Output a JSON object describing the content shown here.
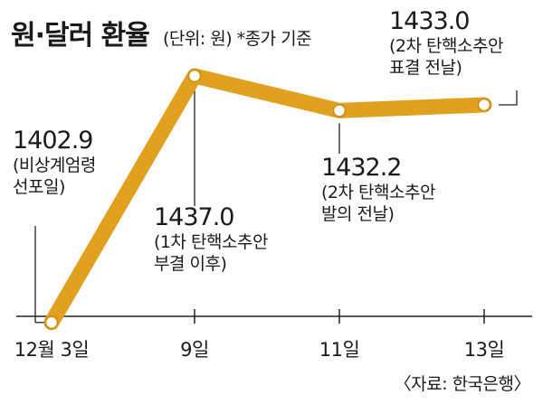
{
  "header": {
    "title": "원·달러 환율",
    "unit_note": "(단위: 원) *종가 기준"
  },
  "source": "〈자료: 한국은행〉",
  "colors": {
    "line": "#e0a020",
    "marker_fill": "#ffffff",
    "axis": "#222222",
    "text": "#1a1a1a"
  },
  "chart_data": {
    "type": "line",
    "title": "원·달러 환율",
    "xlabel": "",
    "ylabel": "",
    "categories": [
      "12월 3일",
      "9일",
      "11일",
      "13일"
    ],
    "series": [
      {
        "values": [
          1402.9,
          1437.0,
          1432.2,
          1433.0
        ]
      }
    ],
    "ylim": [
      1395,
      1445
    ],
    "grid": false,
    "annotations": [
      {
        "value_label": "1402.9",
        "note_lines": [
          "(비상계엄령",
          "선포일)"
        ]
      },
      {
        "value_label": "1437.0",
        "note_lines": [
          "(1차 탄핵소추안",
          "부결 이후)"
        ]
      },
      {
        "value_label": "1432.2",
        "note_lines": [
          "(2차 탄핵소추안",
          "발의 전날)"
        ]
      },
      {
        "value_label": "1433.0",
        "note_lines": [
          "(2차 탄핵소추안",
          "표결 전날)"
        ]
      }
    ]
  }
}
